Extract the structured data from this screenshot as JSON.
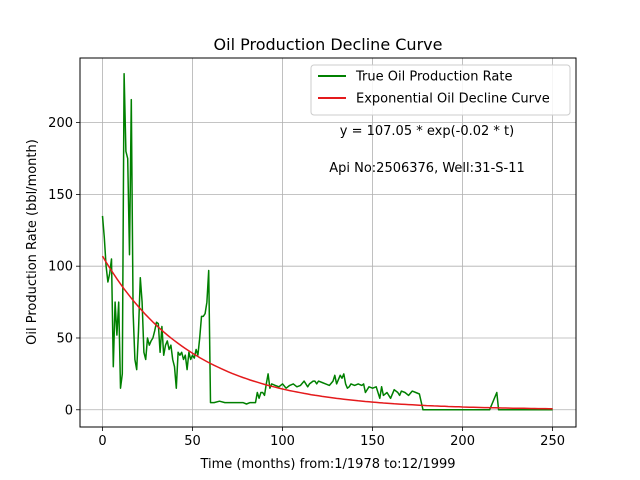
{
  "chart_data": {
    "type": "line",
    "title": "Oil Production Decline Curve",
    "xlabel": "Time (months) from:1/1978 to:12/1999",
    "ylabel": "Oil Production Rate (bbl/month)",
    "xlim": [
      -12.5,
      263
    ],
    "ylim": [
      -12,
      245
    ],
    "xticks": [
      0,
      50,
      100,
      150,
      200,
      250
    ],
    "yticks": [
      0,
      50,
      100,
      150,
      200
    ],
    "grid": true,
    "legend_position": "top-right",
    "annotations": [
      "y = 107.05 * exp(-0.02 * t)",
      "Api No:2506376, Well:31-S-11"
    ],
    "series": [
      {
        "name": "True Oil Production Rate",
        "color": "#008000",
        "x": [
          0,
          1,
          2,
          3,
          4,
          5,
          6,
          7,
          8,
          9,
          10,
          11,
          12,
          13,
          14,
          15,
          16,
          17,
          18,
          19,
          20,
          21,
          22,
          23,
          24,
          25,
          26,
          27,
          28,
          29,
          30,
          31,
          32,
          33,
          34,
          35,
          36,
          37,
          38,
          39,
          40,
          41,
          42,
          43,
          44,
          45,
          46,
          47,
          48,
          49,
          50,
          51,
          52,
          53,
          54,
          55,
          56,
          57,
          58,
          59,
          60,
          62,
          65,
          68,
          70,
          72,
          74,
          76,
          78,
          80,
          82,
          84,
          85,
          86,
          87,
          88,
          89,
          90,
          91,
          92,
          93,
          94,
          96,
          98,
          100,
          102,
          104,
          106,
          108,
          110,
          112,
          114,
          115,
          116,
          117,
          118,
          119,
          120,
          122,
          124,
          126,
          128,
          129,
          130,
          132,
          133,
          134,
          135,
          136,
          137,
          138,
          140,
          142,
          144,
          145,
          146,
          148,
          150,
          152,
          154,
          155,
          156,
          158,
          160,
          162,
          164,
          165,
          166,
          168,
          170,
          172,
          174,
          176,
          178,
          180,
          185,
          190,
          195,
          200,
          205,
          210,
          215,
          219,
          220,
          221,
          222,
          225,
          230,
          240,
          250
        ],
        "y": [
          135,
          120,
          100,
          89,
          95,
          105,
          30,
          75,
          52,
          75,
          15,
          25,
          234,
          180,
          175,
          108,
          216,
          68,
          35,
          28,
          55,
          92,
          75,
          40,
          35,
          50,
          45,
          48,
          50,
          55,
          61,
          60,
          40,
          58,
          38,
          45,
          48,
          42,
          45,
          35,
          30,
          15,
          40,
          38,
          40,
          35,
          38,
          28,
          40,
          35,
          38,
          36,
          42,
          38,
          50,
          65,
          65,
          67,
          75,
          97,
          5,
          5,
          6,
          5,
          5,
          5,
          5,
          5,
          5,
          4,
          5,
          5,
          5,
          12,
          8,
          12,
          12,
          10,
          18,
          25,
          15,
          18,
          17,
          16,
          18,
          15,
          17,
          18,
          16,
          17,
          20,
          16,
          18,
          19,
          20,
          20,
          18,
          20,
          19,
          18,
          17,
          20,
          24,
          18,
          24,
          22,
          25,
          18,
          15,
          16,
          18,
          17,
          18,
          17,
          18,
          12,
          16,
          15,
          16,
          8,
          16,
          10,
          12,
          8,
          14,
          12,
          10,
          13,
          12,
          10,
          13,
          12,
          11,
          0,
          0,
          0,
          0,
          0,
          0,
          0,
          0,
          0,
          12,
          0,
          0,
          0,
          0,
          0,
          0,
          0
        ]
      },
      {
        "name": "Exponential Oil Decline Curve",
        "color": "#e41a1c",
        "a": 107.05,
        "b": 0.02,
        "t_range": [
          0,
          250
        ]
      }
    ]
  }
}
